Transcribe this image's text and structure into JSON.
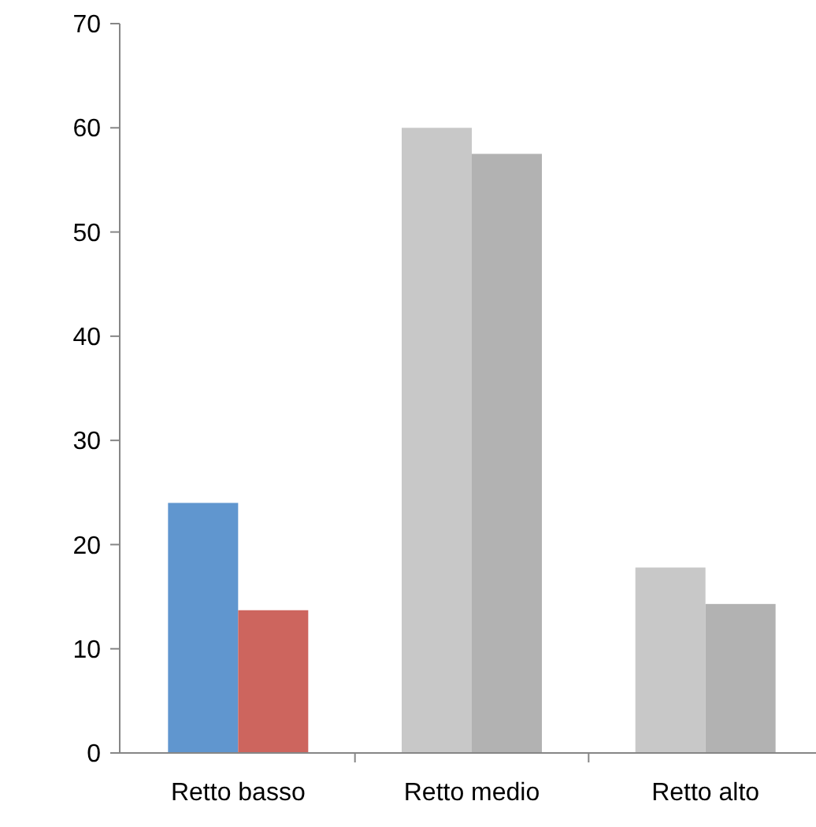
{
  "chart_data": {
    "type": "bar",
    "categories": [
      "Retto basso",
      "Retto medio",
      "Retto alto"
    ],
    "series": [
      {
        "colors": [
          "#6096cf",
          "#c8c8c8",
          "#c8c8c8"
        ],
        "values": [
          24,
          60,
          17.8
        ]
      },
      {
        "colors": [
          "#cd655e",
          "#b2b2b2",
          "#b2b2b2"
        ],
        "values": [
          13.7,
          57.5,
          14.3
        ]
      }
    ],
    "ylim": [
      0,
      70
    ],
    "yticks": [
      0,
      10,
      20,
      30,
      40,
      50,
      60,
      70
    ],
    "grid": false
  }
}
